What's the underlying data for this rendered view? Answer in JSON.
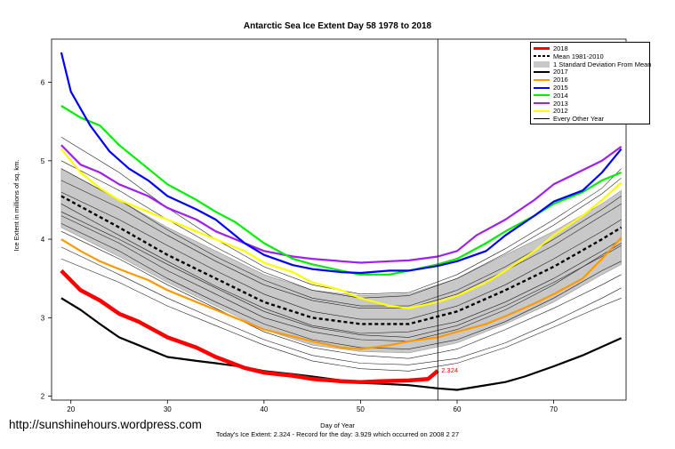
{
  "watermark": "http://sunshinehours.wordpress.com",
  "footnote": "Today's Ice Extent: 2.324  - Record for the day: 3.929 which occurred on 2008 2 27",
  "chart_data": {
    "type": "line",
    "title": "Antarctic Sea Ice Extent Day 58 1978 to 2018",
    "xlabel": "Day of Year",
    "ylabel": "Ice Extent in millions of sq. km.",
    "xlim": [
      18,
      77.5
    ],
    "ylim": [
      1.95,
      6.55
    ],
    "xticks": [
      20,
      30,
      40,
      50,
      60,
      70
    ],
    "yticks": [
      2,
      3,
      4,
      5,
      6
    ],
    "grid": false,
    "legend_position": "top-right",
    "current_day": 58,
    "current_value": 2.324,
    "current_value_label": "2.324",
    "legend": [
      {
        "label": "2018",
        "color": "#ff0000",
        "style": "line-thick"
      },
      {
        "label": "Mean 1981-2010",
        "color": "#000000",
        "style": "dashed"
      },
      {
        "label": "1 Standard Deviation From Mean",
        "color": "#bbbbbb",
        "style": "band"
      },
      {
        "label": "2017",
        "color": "#000000",
        "style": "line"
      },
      {
        "label": "2016",
        "color": "#ff9900",
        "style": "line"
      },
      {
        "label": "2015",
        "color": "#0000ff",
        "style": "line"
      },
      {
        "label": "2014",
        "color": "#00ee00",
        "style": "line"
      },
      {
        "label": "2013",
        "color": "#a020f0",
        "style": "line"
      },
      {
        "label": "2012",
        "color": "#ffff00",
        "style": "line"
      },
      {
        "label": "Every Other Year",
        "color": "#000000",
        "style": "thin"
      }
    ],
    "mean": {
      "x": [
        19,
        25,
        30,
        35,
        40,
        45,
        50,
        55,
        60,
        65,
        70,
        75,
        77
      ],
      "y": [
        4.55,
        4.15,
        3.8,
        3.5,
        3.2,
        3.0,
        2.92,
        2.92,
        3.08,
        3.35,
        3.65,
        4.0,
        4.15
      ]
    },
    "sd_band": {
      "x": [
        19,
        25,
        30,
        35,
        40,
        45,
        50,
        55,
        60,
        65,
        70,
        75,
        77
      ],
      "upper": [
        4.9,
        4.5,
        4.15,
        3.85,
        3.55,
        3.35,
        3.28,
        3.3,
        3.5,
        3.8,
        4.1,
        4.45,
        4.62
      ],
      "lower": [
        4.15,
        3.78,
        3.45,
        3.15,
        2.85,
        2.65,
        2.57,
        2.55,
        2.68,
        2.92,
        3.2,
        3.55,
        3.68
      ]
    },
    "series": [
      {
        "name": "2018",
        "color": "#ff0000",
        "x": [
          19,
          21,
          23,
          25,
          27,
          30,
          33,
          35,
          38,
          40,
          43,
          45,
          48,
          50,
          52,
          55,
          57,
          58
        ],
        "y": [
          3.6,
          3.35,
          3.22,
          3.05,
          2.95,
          2.75,
          2.62,
          2.5,
          2.36,
          2.3,
          2.26,
          2.22,
          2.19,
          2.18,
          2.19,
          2.2,
          2.22,
          2.324
        ]
      },
      {
        "name": "2017",
        "color": "#000000",
        "x": [
          19,
          21,
          23,
          25,
          27,
          30,
          33,
          35,
          38,
          40,
          43,
          45,
          48,
          50,
          52,
          55,
          58,
          60,
          62,
          65,
          67,
          70,
          73,
          75,
          77
        ],
        "y": [
          3.25,
          3.1,
          2.92,
          2.75,
          2.65,
          2.5,
          2.45,
          2.42,
          2.37,
          2.32,
          2.28,
          2.25,
          2.2,
          2.17,
          2.16,
          2.14,
          2.1,
          2.08,
          2.12,
          2.18,
          2.25,
          2.38,
          2.52,
          2.63,
          2.74
        ]
      },
      {
        "name": "2016",
        "color": "#ff9900",
        "x": [
          19,
          21,
          23,
          25,
          28,
          30,
          33,
          35,
          38,
          40,
          43,
          45,
          48,
          50,
          53,
          55,
          58,
          60,
          63,
          65,
          68,
          70,
          73,
          75,
          77
        ],
        "y": [
          4.0,
          3.85,
          3.72,
          3.62,
          3.48,
          3.35,
          3.2,
          3.1,
          2.95,
          2.85,
          2.76,
          2.7,
          2.62,
          2.6,
          2.65,
          2.7,
          2.75,
          2.82,
          2.92,
          3.02,
          3.18,
          3.3,
          3.5,
          3.75,
          4.02
        ]
      },
      {
        "name": "2015",
        "color": "#0000ff",
        "x": [
          19,
          20,
          22,
          24,
          26,
          28,
          30,
          33,
          35,
          38,
          40,
          43,
          45,
          48,
          50,
          53,
          55,
          58,
          60,
          63,
          65,
          68,
          70,
          73,
          75,
          77
        ],
        "y": [
          6.38,
          5.88,
          5.45,
          5.12,
          4.9,
          4.75,
          4.55,
          4.38,
          4.25,
          3.95,
          3.8,
          3.67,
          3.62,
          3.58,
          3.57,
          3.6,
          3.6,
          3.66,
          3.72,
          3.85,
          4.05,
          4.3,
          4.48,
          4.62,
          4.85,
          5.15
        ]
      },
      {
        "name": "2014",
        "color": "#00ee00",
        "x": [
          19,
          21,
          23,
          25,
          27,
          30,
          33,
          35,
          37,
          40,
          43,
          45,
          48,
          50,
          53,
          55,
          58,
          60,
          63,
          65,
          68,
          70,
          73,
          75,
          77
        ],
        "y": [
          5.7,
          5.55,
          5.45,
          5.2,
          5.0,
          4.7,
          4.5,
          4.35,
          4.22,
          3.95,
          3.75,
          3.68,
          3.6,
          3.55,
          3.55,
          3.6,
          3.68,
          3.75,
          3.95,
          4.1,
          4.3,
          4.45,
          4.6,
          4.75,
          4.85
        ]
      },
      {
        "name": "2013",
        "color": "#a020f0",
        "x": [
          19,
          21,
          23,
          25,
          28,
          30,
          33,
          35,
          38,
          40,
          43,
          45,
          48,
          50,
          53,
          55,
          58,
          60,
          62,
          65,
          68,
          70,
          73,
          75,
          77
        ],
        "y": [
          5.2,
          4.95,
          4.85,
          4.7,
          4.55,
          4.4,
          4.25,
          4.1,
          3.95,
          3.85,
          3.78,
          3.75,
          3.72,
          3.7,
          3.72,
          3.73,
          3.78,
          3.85,
          4.05,
          4.25,
          4.5,
          4.7,
          4.88,
          5.0,
          5.18
        ]
      },
      {
        "name": "2012",
        "color": "#ffff00",
        "x": [
          19,
          21,
          23,
          25,
          28,
          30,
          33,
          35,
          38,
          40,
          43,
          45,
          48,
          50,
          53,
          55,
          58,
          60,
          63,
          65,
          68,
          70,
          73,
          75,
          77
        ],
        "y": [
          5.15,
          4.85,
          4.65,
          4.5,
          4.35,
          4.25,
          4.1,
          4.0,
          3.85,
          3.7,
          3.58,
          3.45,
          3.35,
          3.25,
          3.15,
          3.12,
          3.2,
          3.28,
          3.45,
          3.6,
          3.85,
          4.05,
          4.3,
          4.5,
          4.72
        ]
      }
    ],
    "other_years": [
      {
        "x": [
          19,
          25,
          30,
          35,
          40,
          45,
          50,
          55,
          60,
          65,
          70,
          75,
          77
        ],
        "y": [
          4.3,
          3.95,
          3.6,
          3.3,
          3.0,
          2.82,
          2.72,
          2.7,
          2.85,
          3.1,
          3.42,
          3.8,
          3.95
        ]
      },
      {
        "x": [
          19,
          25,
          30,
          35,
          40,
          45,
          50,
          55,
          60,
          65,
          70,
          75,
          77
        ],
        "y": [
          4.75,
          4.4,
          4.05,
          3.72,
          3.42,
          3.22,
          3.12,
          3.12,
          3.3,
          3.6,
          3.92,
          4.3,
          4.45
        ]
      },
      {
        "x": [
          19,
          25,
          30,
          35,
          40,
          45,
          50,
          55,
          60,
          65,
          70,
          75,
          77
        ],
        "y": [
          4.1,
          3.75,
          3.42,
          3.12,
          2.82,
          2.62,
          2.52,
          2.48,
          2.6,
          2.85,
          3.12,
          3.42,
          3.55
        ]
      },
      {
        "x": [
          19,
          25,
          30,
          35,
          40,
          45,
          50,
          55,
          60,
          65,
          70,
          75,
          77
        ],
        "y": [
          5.0,
          4.62,
          4.25,
          3.9,
          3.58,
          3.35,
          3.25,
          3.28,
          3.5,
          3.82,
          4.18,
          4.58,
          4.78
        ]
      },
      {
        "x": [
          19,
          25,
          30,
          35,
          40,
          45,
          50,
          55,
          60,
          65,
          70,
          75,
          77
        ],
        "y": [
          4.45,
          4.05,
          3.72,
          3.4,
          3.12,
          2.9,
          2.8,
          2.82,
          2.95,
          3.2,
          3.5,
          3.85,
          4.0
        ]
      },
      {
        "x": [
          19,
          25,
          30,
          35,
          40,
          45,
          50,
          55,
          60,
          65,
          70,
          75,
          77
        ],
        "y": [
          3.9,
          3.55,
          3.25,
          2.98,
          2.72,
          2.52,
          2.42,
          2.4,
          2.48,
          2.68,
          2.95,
          3.25,
          3.38
        ]
      },
      {
        "x": [
          19,
          25,
          30,
          35,
          40,
          45,
          50,
          55,
          60,
          65,
          70,
          75,
          77
        ],
        "y": [
          4.6,
          4.25,
          3.92,
          3.6,
          3.3,
          3.08,
          2.98,
          2.98,
          3.15,
          3.42,
          3.75,
          4.1,
          4.25
        ]
      },
      {
        "x": [
          19,
          25,
          30,
          35,
          40,
          45,
          50,
          55,
          60,
          65,
          70,
          75,
          77
        ],
        "y": [
          4.2,
          3.85,
          3.5,
          3.2,
          2.92,
          2.72,
          2.62,
          2.6,
          2.72,
          2.95,
          3.25,
          3.6,
          3.72
        ]
      },
      {
        "x": [
          19,
          25,
          30,
          35,
          40,
          45,
          50,
          55,
          60,
          65,
          70,
          75,
          77
        ],
        "y": [
          5.3,
          4.85,
          4.4,
          4.0,
          3.65,
          3.42,
          3.3,
          3.32,
          3.55,
          3.88,
          4.25,
          4.65,
          4.9
        ]
      },
      {
        "x": [
          19,
          25,
          30,
          35,
          40,
          45,
          50,
          55,
          60,
          65,
          70,
          75,
          77
        ],
        "y": [
          3.75,
          3.45,
          3.15,
          2.9,
          2.65,
          2.45,
          2.35,
          2.32,
          2.42,
          2.62,
          2.88,
          3.15,
          3.25
        ]
      },
      {
        "x": [
          19,
          25,
          30,
          35,
          40,
          45,
          50,
          55,
          60,
          65,
          70,
          75,
          77
        ],
        "y": [
          4.9,
          4.5,
          4.12,
          3.78,
          3.48,
          3.25,
          3.15,
          3.15,
          3.35,
          3.65,
          4.0,
          4.38,
          4.55
        ]
      },
      {
        "x": [
          19,
          25,
          30,
          35,
          40,
          45,
          50,
          55,
          60,
          65,
          70,
          75,
          77
        ],
        "y": [
          4.35,
          4.0,
          3.68,
          3.38,
          3.08,
          2.88,
          2.78,
          2.75,
          2.9,
          3.15,
          3.45,
          3.78,
          3.92
        ]
      }
    ]
  }
}
